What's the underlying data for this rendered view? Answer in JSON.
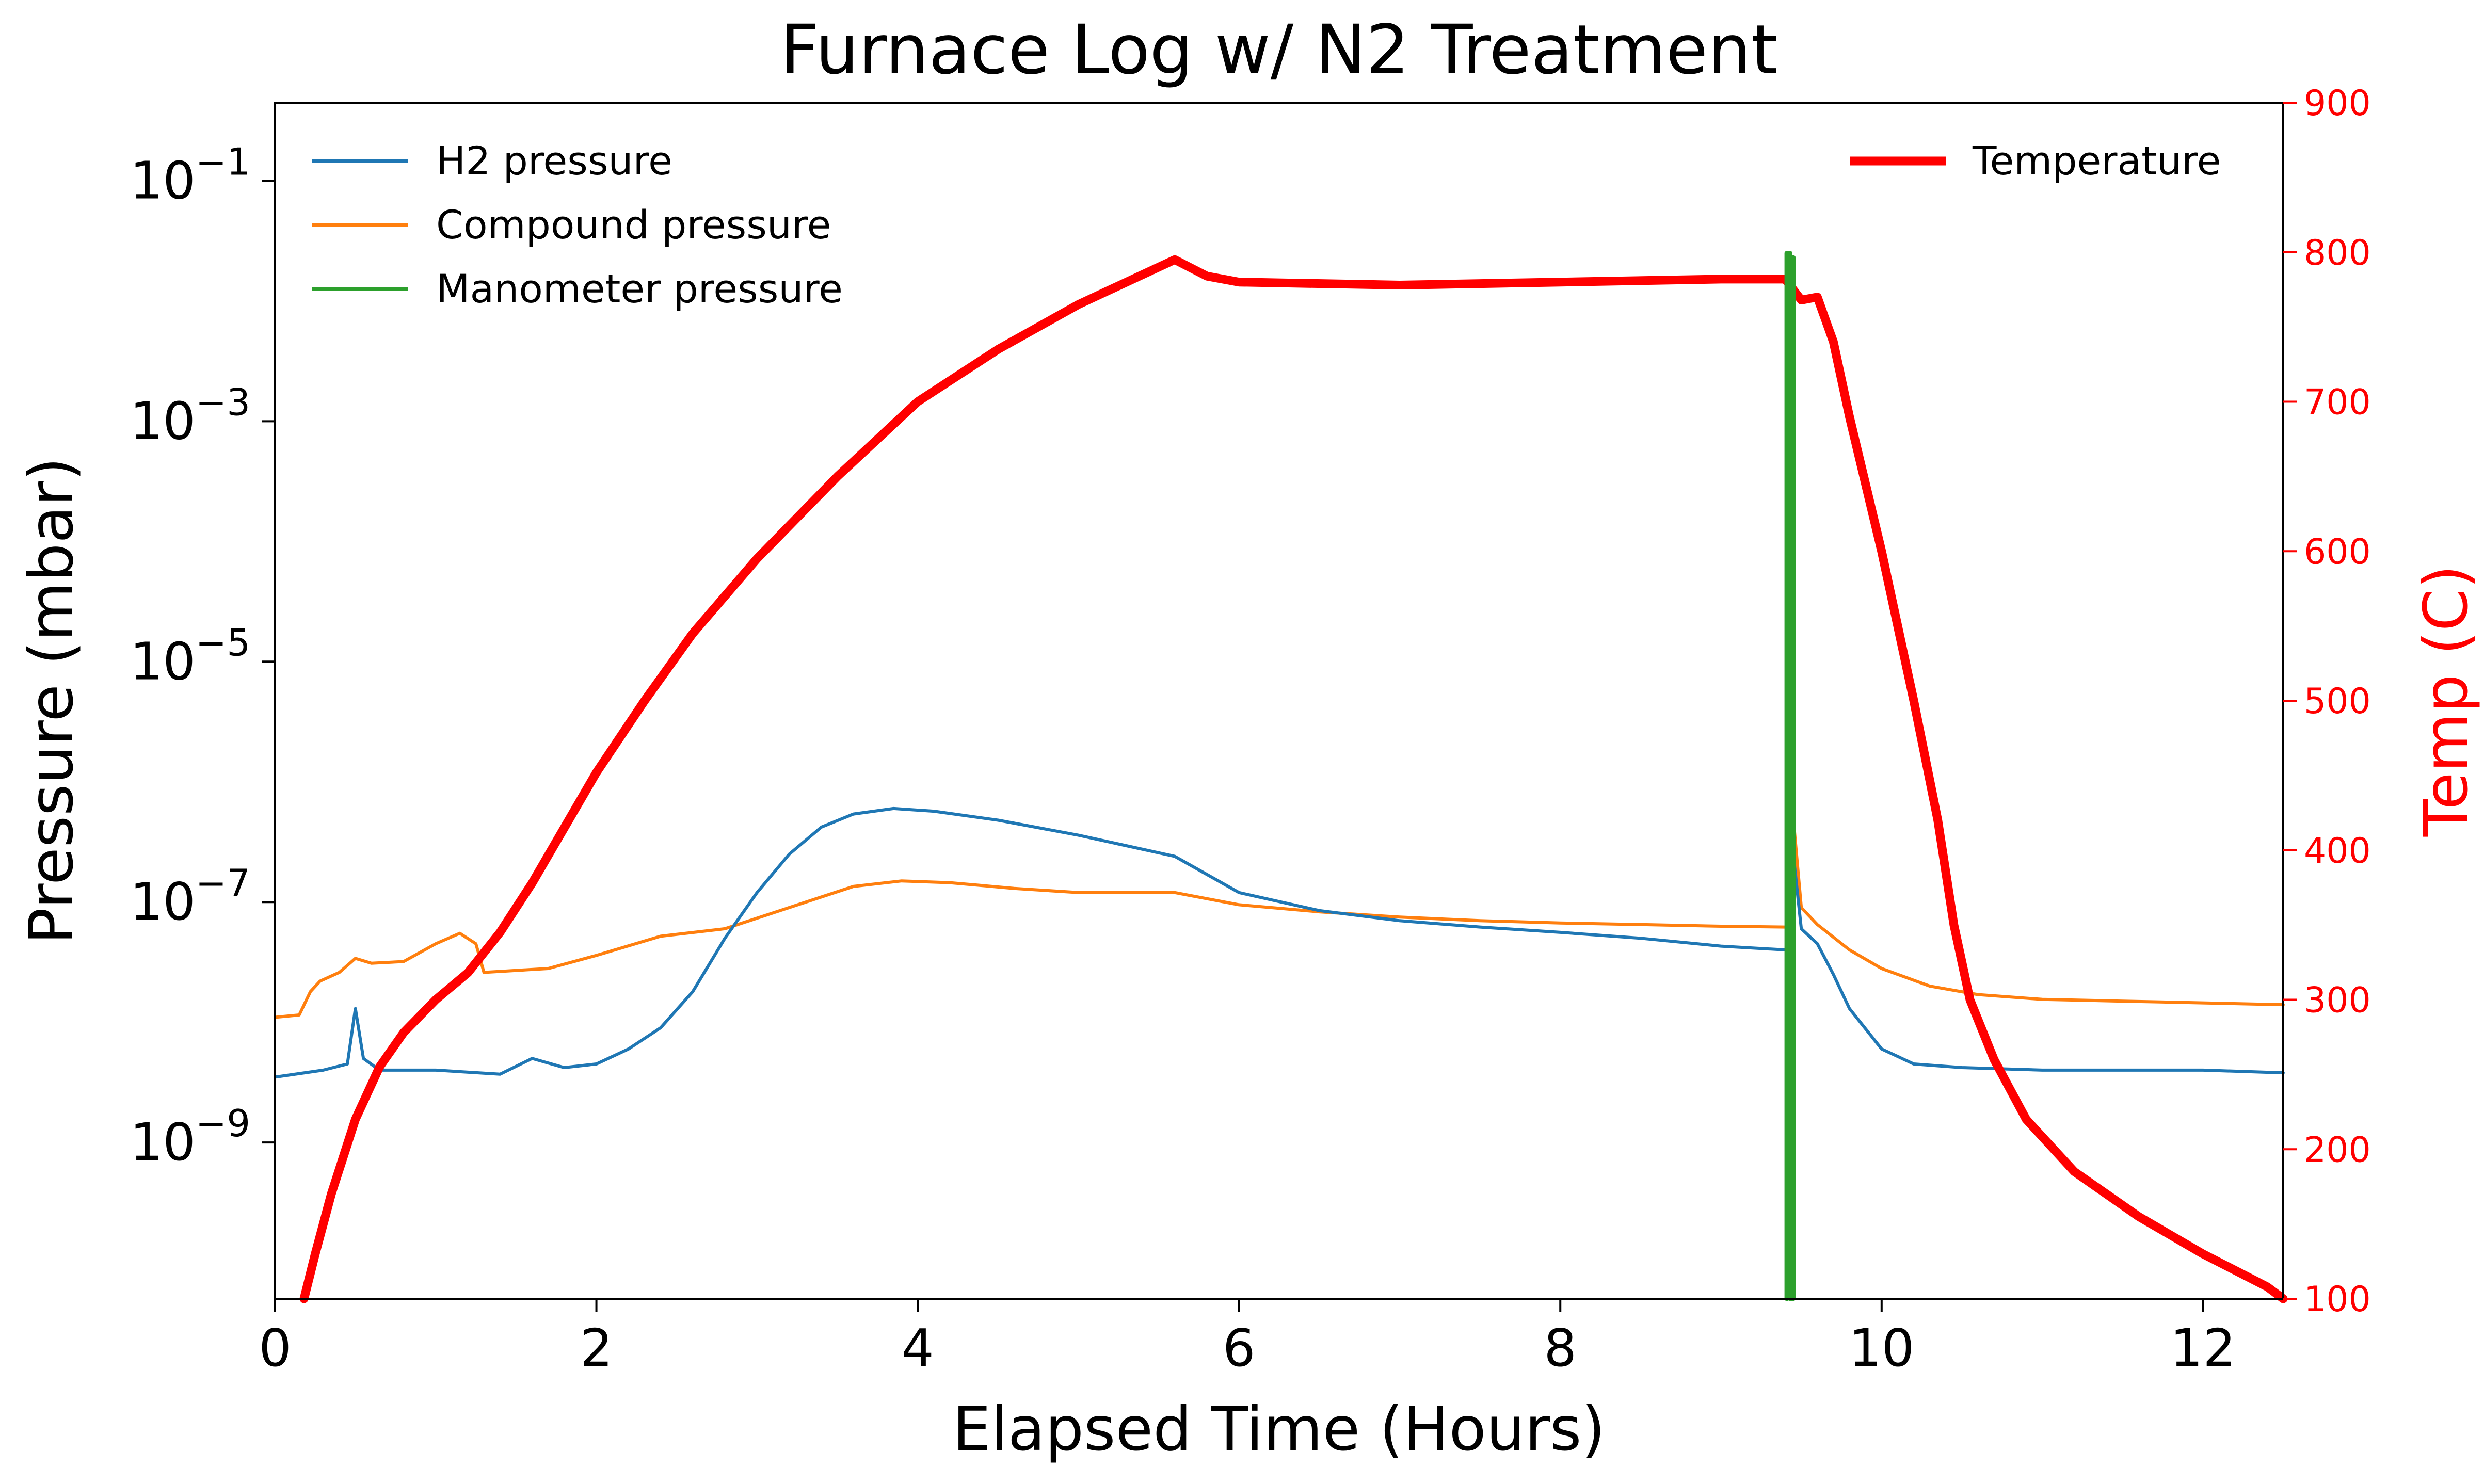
{
  "chart_data": {
    "type": "line",
    "title": "Furnace Log w/ N2 Treatment",
    "xlabel": "Elapsed Time (Hours)",
    "ylabel_left": "Pressure (mbar)",
    "ylabel_right": "Temp (C)",
    "xlim": [
      0,
      12.5
    ],
    "xticks": [
      0,
      2,
      4,
      6,
      8,
      10,
      12
    ],
    "xtick_labels": [
      "0",
      "2",
      "4",
      "6",
      "8",
      "10",
      "12"
    ],
    "left_axis": {
      "scale": "log",
      "ylim_log10": [
        -10.3,
        -0.35
      ],
      "tick_exponents": [
        -1,
        -3,
        -5,
        -7,
        -9
      ],
      "tick_base": "10",
      "tick_exponent_labels": [
        "−1",
        "−3",
        "−5",
        "−7",
        "−9"
      ]
    },
    "right_axis": {
      "scale": "linear",
      "ylim": [
        100,
        900
      ],
      "ticks": [
        100,
        200,
        300,
        400,
        500,
        600,
        700,
        800,
        900
      ],
      "tick_labels": [
        "100",
        "200",
        "300",
        "400",
        "500",
        "600",
        "700",
        "800",
        "900"
      ],
      "color": "#ff0000"
    },
    "legend_left": {
      "placement": "top-left",
      "entries": [
        "H2 pressure",
        "Compound pressure",
        "Manometer pressure"
      ]
    },
    "legend_right": {
      "placement": "top-right",
      "entries": [
        "Temperature"
      ]
    },
    "series": [
      {
        "name": "H2 pressure",
        "axis": "left",
        "color": "#1f77b4",
        "x": [
          0,
          0.3,
          0.45,
          0.5,
          0.55,
          0.65,
          1.0,
          1.4,
          1.6,
          1.8,
          2.0,
          2.2,
          2.4,
          2.6,
          2.8,
          3.0,
          3.2,
          3.4,
          3.6,
          3.85,
          4.1,
          4.5,
          5.0,
          5.6,
          6.0,
          6.5,
          7.0,
          7.5,
          8.0,
          8.5,
          9.0,
          9.4,
          9.42,
          9.45,
          9.5,
          9.6,
          9.7,
          9.8,
          10.0,
          10.2,
          10.5,
          11.0,
          11.5,
          12.0,
          12.5
        ],
        "values": [
          3.5e-09,
          4e-09,
          4.5e-09,
          1.3e-08,
          5e-09,
          4e-09,
          4e-09,
          3.7e-09,
          5e-09,
          4.2e-09,
          4.5e-09,
          6e-09,
          9e-09,
          1.8e-08,
          5e-08,
          1.2e-07,
          2.5e-07,
          4.2e-07,
          5.4e-07,
          6e-07,
          5.7e-07,
          4.8e-07,
          3.6e-07,
          2.4e-07,
          1.2e-07,
          8.5e-08,
          7e-08,
          6.2e-08,
          5.6e-08,
          5e-08,
          4.3e-08,
          4e-08,
          4e-08,
          2.5e-07,
          6e-08,
          4.5e-08,
          2.5e-08,
          1.3e-08,
          6e-09,
          4.5e-09,
          4.2e-09,
          4e-09,
          4e-09,
          4e-09,
          3.8e-09
        ]
      },
      {
        "name": "Compound pressure",
        "axis": "left",
        "color": "#ff7f0e",
        "x": [
          0,
          0.15,
          0.22,
          0.28,
          0.4,
          0.5,
          0.6,
          0.8,
          1.0,
          1.15,
          1.25,
          1.3,
          1.5,
          1.7,
          2.0,
          2.4,
          2.8,
          3.2,
          3.6,
          3.9,
          4.2,
          4.6,
          5.0,
          5.6,
          6.0,
          6.5,
          7.0,
          7.5,
          8.0,
          8.5,
          9.0,
          9.4,
          9.42,
          9.45,
          9.5,
          9.6,
          9.8,
          10.0,
          10.3,
          10.6,
          11.0,
          11.5,
          12.0,
          12.5
        ],
        "values": [
          1.1e-08,
          1.15e-08,
          1.8e-08,
          2.2e-08,
          2.6e-08,
          3.4e-08,
          3.1e-08,
          3.2e-08,
          4.5e-08,
          5.5e-08,
          4.5e-08,
          2.6e-08,
          2.7e-08,
          2.8e-08,
          3.6e-08,
          5.2e-08,
          6e-08,
          9e-08,
          1.35e-07,
          1.5e-07,
          1.45e-07,
          1.3e-07,
          1.2e-07,
          1.2e-07,
          9.5e-08,
          8.3e-08,
          7.5e-08,
          7e-08,
          6.7e-08,
          6.5e-08,
          6.3e-08,
          6.2e-08,
          6.2e-08,
          5e-07,
          9e-08,
          6.5e-08,
          4e-08,
          2.8e-08,
          2e-08,
          1.7e-08,
          1.55e-08,
          1.5e-08,
          1.45e-08,
          1.4e-08
        ]
      },
      {
        "name": "Manometer pressure",
        "axis": "left",
        "color": "#2ca02c",
        "x": [
          9.41,
          9.41,
          9.43,
          9.43,
          9.45,
          9.45
        ],
        "values": [
          5e-11,
          0.025,
          0.025,
          5e-11,
          5e-11,
          0.023
        ]
      },
      {
        "name": "Temperature",
        "axis": "right",
        "color": "#ff0000",
        "x": [
          0.18,
          0.25,
          0.35,
          0.5,
          0.65,
          0.8,
          1.0,
          1.2,
          1.4,
          1.6,
          1.8,
          2.0,
          2.3,
          2.6,
          3.0,
          3.5,
          4.0,
          4.5,
          5.0,
          5.5,
          5.6,
          5.8,
          6.0,
          7.0,
          8.0,
          9.0,
          9.4,
          9.5,
          9.6,
          9.7,
          9.8,
          10.0,
          10.2,
          10.35,
          10.45,
          10.55,
          10.7,
          10.9,
          11.2,
          11.6,
          12.0,
          12.4,
          12.5
        ],
        "values": [
          100,
          130,
          170,
          220,
          255,
          278,
          300,
          318,
          345,
          378,
          415,
          452,
          500,
          545,
          595,
          650,
          700,
          735,
          765,
          790,
          795,
          784,
          780,
          778,
          780,
          782,
          782,
          768,
          770,
          740,
          690,
          600,
          500,
          420,
          350,
          300,
          260,
          220,
          185,
          155,
          130,
          108,
          100
        ]
      }
    ]
  }
}
